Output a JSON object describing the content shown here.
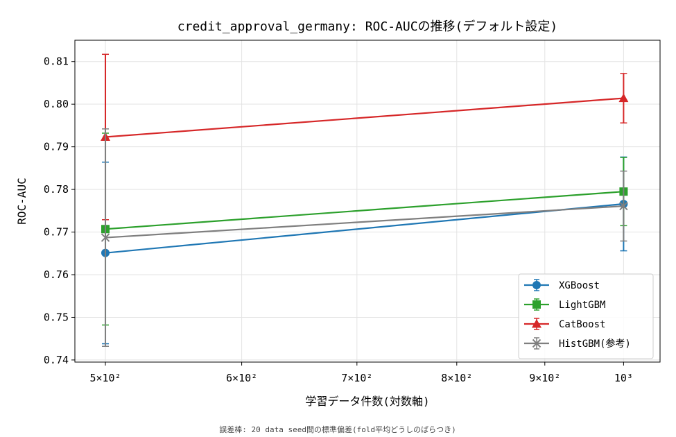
{
  "chart_data": {
    "type": "line",
    "title": "credit_approval_germany: ROC-AUCの推移(デフォルト設定)",
    "xlabel": "学習データ件数(対数軸)",
    "ylabel": "ROC-AUC",
    "xscale": "log",
    "xlim": [
      480,
      1050
    ],
    "ylim": [
      0.7395,
      0.815
    ],
    "x": [
      500,
      1000
    ],
    "x_ticks": [
      {
        "value": 500,
        "label": "5×10²"
      },
      {
        "value": 600,
        "label": "6×10²"
      },
      {
        "value": 700,
        "label": "7×10²"
      },
      {
        "value": 800,
        "label": "8×10²"
      },
      {
        "value": 900,
        "label": "9×10²"
      },
      {
        "value": 1000,
        "label": "10³"
      }
    ],
    "y_ticks": [
      0.74,
      0.75,
      0.76,
      0.77,
      0.78,
      0.79,
      0.8,
      0.81
    ],
    "y_tick_labels": [
      "0.74",
      "0.75",
      "0.76",
      "0.77",
      "0.78",
      "0.79",
      "0.80",
      "0.81"
    ],
    "grid": true,
    "legend_position": "lower-right",
    "series": [
      {
        "name": "XGBoost",
        "color": "#1f77b4",
        "marker": "circle",
        "values": [
          0.7651,
          0.7766
        ],
        "errors": [
          0.0213,
          0.011
        ]
      },
      {
        "name": "LightGBM",
        "color": "#2ca02c",
        "marker": "square",
        "values": [
          0.7707,
          0.7795
        ],
        "errors": [
          0.0225,
          0.008
        ]
      },
      {
        "name": "CatBoost",
        "color": "#d62728",
        "marker": "triangle",
        "values": [
          0.7923,
          0.8014
        ],
        "errors": [
          0.0194,
          0.0058
        ]
      },
      {
        "name": "HistGBM(参考)",
        "color": "#7f7f7f",
        "marker": "x",
        "values": [
          0.7687,
          0.7761
        ],
        "errors": [
          0.0255,
          0.0082
        ]
      }
    ],
    "footnote": "誤差棒: 20 data seed間の標準偏差(fold平均どうしのばらつき)"
  }
}
